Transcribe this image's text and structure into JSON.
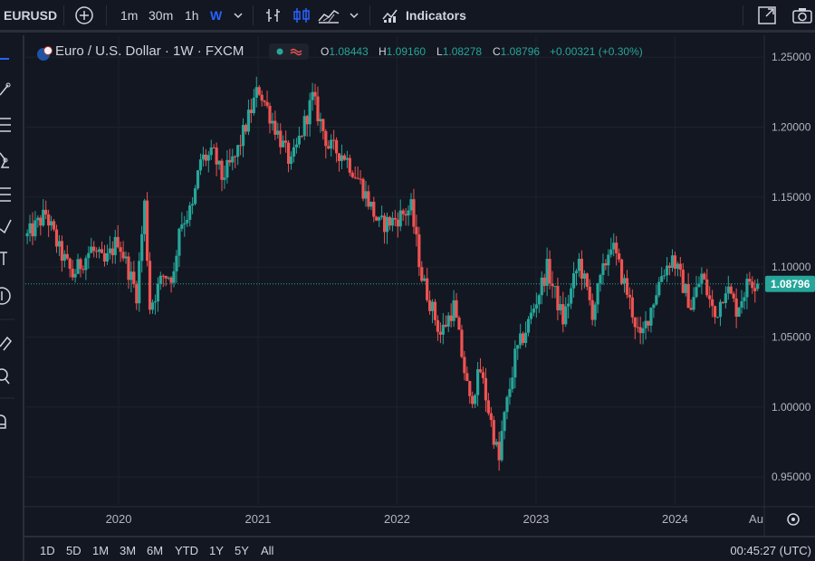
{
  "toolbar": {
    "symbol": "EURUSD",
    "intervals": [
      "1m",
      "30m",
      "1h",
      "W"
    ],
    "active_interval": "W",
    "indicators_label": "Indicators"
  },
  "legend": {
    "title": "Euro / U.S. Dollar · 1W · FXCM",
    "open_key": "O",
    "open": "1.08443",
    "high_key": "H",
    "high": "1.09160",
    "low_key": "L",
    "low": "1.08278",
    "close_key": "C",
    "close": "1.08796",
    "change": "+0.00321 (+0.30%)"
  },
  "ranges": [
    "1D",
    "5D",
    "1M",
    "3M",
    "6M",
    "YTD",
    "1Y",
    "5Y",
    "All"
  ],
  "clock": "00:45:27 (UTC)",
  "colors": {
    "up": "#26a69a",
    "down": "#ef5350",
    "background": "#131722",
    "grid": "#1e222d",
    "price_line": "#26a69a"
  },
  "chart_data": {
    "type": "candlestick",
    "interval": "1W",
    "x_tick_labels": [
      "2020",
      "2021",
      "2022",
      "2023",
      "2024",
      "Au"
    ],
    "y_ticks": [
      1.25,
      1.2,
      1.15,
      1.1,
      1.05,
      1.0,
      0.95
    ],
    "y_tick_labels": [
      "1.25000",
      "1.20000",
      "1.15000",
      "1.10000",
      "1.05000",
      "1.00000",
      "0.95000"
    ],
    "ylim": [
      0.93,
      1.265
    ],
    "xlim": [
      "2019-05-01",
      "2024-08-20"
    ],
    "last_price": 1.08796,
    "last_price_label": "1.08796",
    "grid": true,
    "anchors": [
      [
        "2019-05-06",
        1.122
      ],
      [
        "2019-06-24",
        1.138
      ],
      [
        "2019-07-29",
        1.112
      ],
      [
        "2019-09-02",
        1.094
      ],
      [
        "2019-10-21",
        1.113
      ],
      [
        "2019-11-25",
        1.102
      ],
      [
        "2019-12-30",
        1.12
      ],
      [
        "2020-02-17",
        1.081
      ],
      [
        "2020-03-09",
        1.145
      ],
      [
        "2020-03-23",
        1.072
      ],
      [
        "2020-04-27",
        1.094
      ],
      [
        "2020-05-25",
        1.094
      ],
      [
        "2020-06-08",
        1.13
      ],
      [
        "2020-07-13",
        1.142
      ],
      [
        "2020-08-03",
        1.177
      ],
      [
        "2020-09-07",
        1.18
      ],
      [
        "2020-09-28",
        1.164
      ],
      [
        "2020-11-02",
        1.178
      ],
      [
        "2020-12-28",
        1.224
      ],
      [
        "2021-01-04",
        1.227
      ],
      [
        "2021-03-29",
        1.173
      ],
      [
        "2021-05-24",
        1.221
      ],
      [
        "2021-07-05",
        1.186
      ],
      [
        "2021-08-16",
        1.18
      ],
      [
        "2021-09-27",
        1.16
      ],
      [
        "2021-11-15",
        1.13
      ],
      [
        "2021-12-20",
        1.133
      ],
      [
        "2022-02-07",
        1.142
      ],
      [
        "2022-03-07",
        1.093
      ],
      [
        "2022-04-25",
        1.052
      ],
      [
        "2022-05-30",
        1.072
      ],
      [
        "2022-07-11",
        1.003
      ],
      [
        "2022-08-08",
        1.026
      ],
      [
        "2022-09-26",
        0.961
      ],
      [
        "2022-10-03",
        0.981
      ],
      [
        "2022-11-07",
        1.036
      ],
      [
        "2022-12-12",
        1.06
      ],
      [
        "2023-01-30",
        1.099
      ],
      [
        "2023-03-13",
        1.062
      ],
      [
        "2023-04-24",
        1.104
      ],
      [
        "2023-05-29",
        1.068
      ],
      [
        "2023-07-17",
        1.118
      ],
      [
        "2023-08-28",
        1.082
      ],
      [
        "2023-10-02",
        1.047
      ],
      [
        "2023-11-27",
        1.095
      ],
      [
        "2023-12-25",
        1.107
      ],
      [
        "2024-02-12",
        1.072
      ],
      [
        "2024-03-11",
        1.094
      ],
      [
        "2024-04-15",
        1.064
      ],
      [
        "2024-05-13",
        1.087
      ],
      [
        "2024-06-10",
        1.07
      ],
      [
        "2024-07-15",
        1.091
      ],
      [
        "2024-08-05",
        1.088
      ]
    ],
    "last_candle": {
      "open": 1.08443,
      "high": 1.0916,
      "low": 1.08278,
      "close": 1.08796
    }
  }
}
